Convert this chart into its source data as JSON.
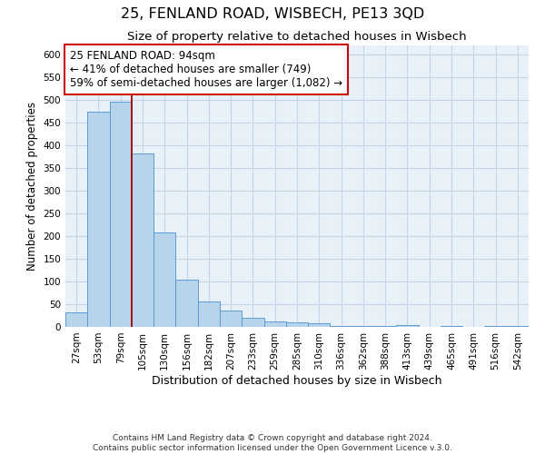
{
  "title": "25, FENLAND ROAD, WISBECH, PE13 3QD",
  "subtitle": "Size of property relative to detached houses in Wisbech",
  "xlabel": "Distribution of detached houses by size in Wisbech",
  "ylabel": "Number of detached properties",
  "bar_labels": [
    "27sqm",
    "53sqm",
    "79sqm",
    "105sqm",
    "130sqm",
    "156sqm",
    "182sqm",
    "207sqm",
    "233sqm",
    "259sqm",
    "285sqm",
    "310sqm",
    "336sqm",
    "362sqm",
    "388sqm",
    "413sqm",
    "439sqm",
    "465sqm",
    "491sqm",
    "516sqm",
    "542sqm"
  ],
  "bar_values": [
    32,
    474,
    497,
    383,
    209,
    105,
    57,
    37,
    20,
    12,
    11,
    8,
    2,
    2,
    2,
    4,
    0,
    3,
    0,
    2,
    3
  ],
  "bar_color": "#b8d4eb",
  "bar_edge_color": "#5b9bd5",
  "bg_color": "#e8f0f8",
  "grid_color": "#c5d5e8",
  "vline_color": "#aa0000",
  "annotation_text": "25 FENLAND ROAD: 94sqm\n← 41% of detached houses are smaller (749)\n59% of semi-detached houses are larger (1,082) →",
  "annotation_box_color": "#ffffff",
  "annotation_box_edge": "#cc0000",
  "ylim": [
    0,
    620
  ],
  "yticks": [
    0,
    50,
    100,
    150,
    200,
    250,
    300,
    350,
    400,
    450,
    500,
    550,
    600
  ],
  "footer_text": "Contains HM Land Registry data © Crown copyright and database right 2024.\nContains public sector information licensed under the Open Government Licence v.3.0.",
  "title_fontsize": 11.5,
  "subtitle_fontsize": 9.5,
  "xlabel_fontsize": 9,
  "ylabel_fontsize": 8.5,
  "tick_fontsize": 7.5,
  "annotation_fontsize": 8.5,
  "footer_fontsize": 6.5
}
